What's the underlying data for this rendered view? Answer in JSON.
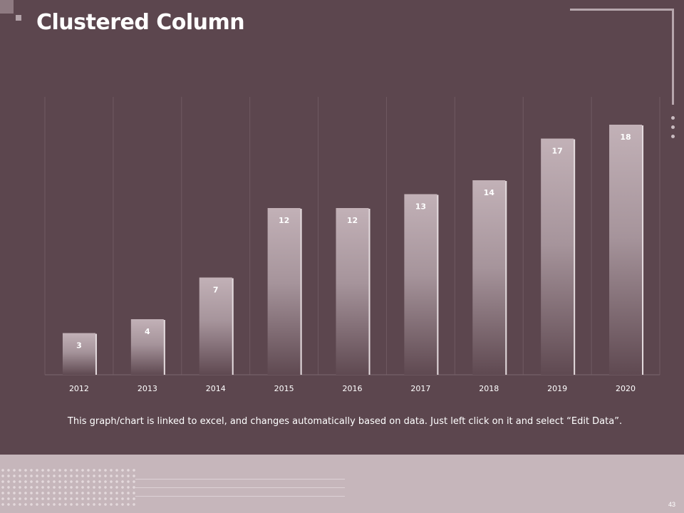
{
  "slide": {
    "title": "Clustered Column",
    "caption": "This graph/chart is linked to excel, and changes automatically based on data. Just left click on it and select “Edit Data”.",
    "page_number": "43"
  },
  "colors": {
    "background": "#5c464e",
    "bar_top": "#c2b1b7",
    "bar_bottom": "#5f4951",
    "footer": "#c6b6bb"
  },
  "chart_data": {
    "type": "bar",
    "title": "",
    "xlabel": "",
    "ylabel": "",
    "categories": [
      "2012",
      "2013",
      "2014",
      "2015",
      "2016",
      "2017",
      "2018",
      "2019",
      "2020"
    ],
    "series": [
      {
        "values": [
          3,
          4,
          7,
          12,
          12,
          13,
          14,
          17,
          18
        ]
      }
    ],
    "data_labels": true,
    "ylim": [
      0,
      20
    ],
    "grid": "vertical category dividers",
    "legend": "none"
  }
}
